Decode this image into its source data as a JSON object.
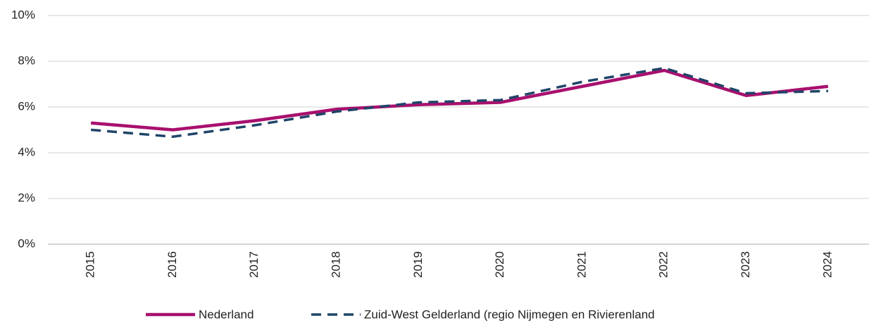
{
  "chart_data": {
    "type": "line",
    "categories": [
      "2015",
      "2016",
      "2017",
      "2018",
      "2019",
      "2020",
      "2021",
      "2022",
      "2023",
      "2024"
    ],
    "series": [
      {
        "name": "Nederland",
        "color": "#a8106e",
        "style": "solid",
        "values": [
          5.3,
          5.0,
          5.4,
          5.9,
          6.1,
          6.2,
          6.9,
          7.6,
          6.5,
          6.9
        ]
      },
      {
        "name": "Zuid-West Gelderland (regio Nijmegen en Rivierenland",
        "color": "#1f4468",
        "style": "dashed",
        "values": [
          5.0,
          4.7,
          5.2,
          5.8,
          6.2,
          6.3,
          7.1,
          7.7,
          6.6,
          6.7
        ]
      }
    ],
    "ylim": [
      0,
      10
    ],
    "yticks": [
      {
        "value": 0,
        "label": "0%"
      },
      {
        "value": 2,
        "label": "2%"
      },
      {
        "value": 4,
        "label": "4%"
      },
      {
        "value": 6,
        "label": "6%"
      },
      {
        "value": 8,
        "label": "8%"
      },
      {
        "value": 10,
        "label": "10%"
      }
    ],
    "grid": true,
    "legend": "bottom"
  }
}
